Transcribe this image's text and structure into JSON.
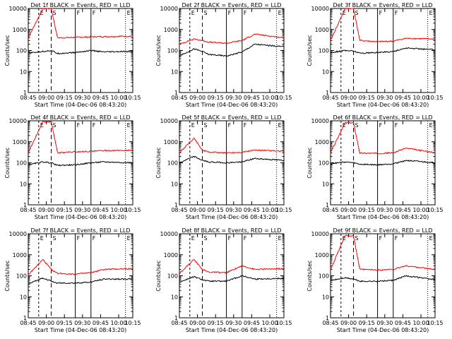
{
  "figure": {
    "axis_label_y": "Counts/sec",
    "axis_label_x": "Start Time (04-Dec-06 08:43:20)",
    "series_names": [
      "BLACK = Events",
      "RED = LLD"
    ]
  },
  "chart_data": [
    {
      "type": "line",
      "title": "Det 1f BLACK = Events, RED = LLD",
      "xlabel": "Start Time (04-Dec-06 08:43:20)",
      "ylabel": "Counts/sec",
      "ylog": true,
      "ylim": [
        1,
        10000
      ],
      "x_tick_labels": [
        "08:45",
        "09:00",
        "09:15",
        "09:30",
        "09:45",
        "10:00",
        "10:15"
      ],
      "y_tick_labels": [
        "1",
        "10",
        "100",
        "1000",
        "10000"
      ],
      "markers": [
        "E",
        "S",
        "F",
        "F",
        "E"
      ],
      "peak": 10000,
      "series": [
        {
          "name": "LLD",
          "color": "#ff0000",
          "values": [
            400,
            10000,
            10000,
            400,
            420,
            450,
            460,
            480
          ]
        },
        {
          "name": "Events",
          "color": "#000000",
          "values": [
            75,
            90,
            100,
            72,
            80,
            100,
            85,
            90
          ]
        }
      ]
    },
    {
      "type": "line",
      "title": "Det 2f BLACK = Events, RED = LLD",
      "xlabel": "Start Time (04-Dec-06 08:43:20)",
      "ylabel": "Counts/sec",
      "ylog": true,
      "ylim": [
        1,
        10000
      ],
      "x_tick_labels": [
        "08:45",
        "09:00",
        "09:15",
        "09:30",
        "09:45",
        "10:00",
        "10:15"
      ],
      "y_tick_labels": [
        "1",
        "10",
        "100",
        "1000",
        "10000"
      ],
      "markers": [
        "E",
        "S",
        "F",
        "F",
        "E"
      ],
      "peak": 600,
      "series": [
        {
          "name": "LLD",
          "color": "#ff0000",
          "values": [
            200,
            350,
            300,
            250,
            220,
            300,
            600,
            400
          ]
        },
        {
          "name": "Events",
          "color": "#000000",
          "values": [
            55,
            120,
            90,
            65,
            55,
            85,
            200,
            150
          ]
        }
      ]
    },
    {
      "type": "line",
      "title": "Det 3f BLACK = Events, RED = LLD",
      "xlabel": "Start Time (04-Dec-06 08:43:20)",
      "ylabel": "Counts/sec",
      "ylog": true,
      "ylim": [
        1,
        10000
      ],
      "x_tick_labels": [
        "08:45",
        "09:00",
        "09:15",
        "09:30",
        "09:45",
        "10:00",
        "10:15"
      ],
      "y_tick_labels": [
        "1",
        "10",
        "100",
        "1000",
        "10000"
      ],
      "markers": [
        "E",
        "S",
        "F",
        "F",
        "E"
      ],
      "peak": 10000,
      "series": [
        {
          "name": "LLD",
          "color": "#ff0000",
          "values": [
            300,
            10000,
            10000,
            300,
            260,
            280,
            380,
            350
          ]
        },
        {
          "name": "Events",
          "color": "#000000",
          "values": [
            80,
            100,
            95,
            75,
            80,
            90,
            130,
            110
          ]
        }
      ]
    },
    {
      "type": "line",
      "title": "Det 4f BLACK = Events, RED = LLD",
      "xlabel": "Start Time (04-Dec-06 08:43:20)",
      "ylabel": "Counts/sec",
      "ylog": true,
      "ylim": [
        1,
        10000
      ],
      "x_tick_labels": [
        "08:45",
        "09:00",
        "09:15",
        "09:30",
        "09:45",
        "10:00",
        "10:15"
      ],
      "y_tick_labels": [
        "1",
        "10",
        "100",
        "1000",
        "10000"
      ],
      "markers": [
        "E",
        "S",
        "F",
        "F",
        "E"
      ],
      "peak": 9000,
      "series": [
        {
          "name": "LLD",
          "color": "#ff0000",
          "values": [
            300,
            9000,
            9000,
            300,
            330,
            350,
            380,
            390
          ]
        },
        {
          "name": "Events",
          "color": "#000000",
          "values": [
            80,
            110,
            100,
            75,
            80,
            100,
            110,
            100
          ]
        }
      ]
    },
    {
      "type": "line",
      "title": "Det 5f BLACK = Events, RED = LLD",
      "xlabel": "Start Time (04-Dec-06 08:43:20)",
      "ylabel": "Counts/sec",
      "ylog": true,
      "ylim": [
        1,
        10000
      ],
      "x_tick_labels": [
        "08:45",
        "09:00",
        "09:15",
        "09:30",
        "09:45",
        "10:00",
        "10:15"
      ],
      "y_tick_labels": [
        "1",
        "10",
        "100",
        "1000",
        "10000"
      ],
      "markers": [
        "E",
        "S",
        "F",
        "F",
        "E"
      ],
      "peak": 1500,
      "series": [
        {
          "name": "LLD",
          "color": "#ff0000",
          "values": [
            300,
            1500,
            400,
            320,
            300,
            320,
            400,
            350
          ]
        },
        {
          "name": "Events",
          "color": "#000000",
          "values": [
            100,
            200,
            130,
            110,
            100,
            110,
            160,
            130
          ]
        }
      ]
    },
    {
      "type": "line",
      "title": "Det 6f BLACK = Events, RED = LLD",
      "xlabel": "Start Time (04-Dec-06 08:43:20)",
      "ylabel": "Counts/sec",
      "ylog": true,
      "ylim": [
        1,
        10000
      ],
      "x_tick_labels": [
        "08:45",
        "09:00",
        "09:15",
        "09:30",
        "09:45",
        "10:00",
        "10:15"
      ],
      "y_tick_labels": [
        "1",
        "10",
        "100",
        "1000",
        "10000"
      ],
      "markers": [
        "E",
        "S",
        "F",
        "F",
        "E"
      ],
      "peak": 8000,
      "series": [
        {
          "name": "LLD",
          "color": "#ff0000",
          "values": [
            300,
            8000,
            8000,
            290,
            280,
            300,
            500,
            300
          ]
        },
        {
          "name": "Events",
          "color": "#000000",
          "values": [
            90,
            110,
            100,
            85,
            80,
            90,
            130,
            100
          ]
        }
      ]
    },
    {
      "type": "line",
      "title": "Det 7f BLACK = Events, RED = LLD",
      "xlabel": "Start Time (04-Dec-06 08:43:20)",
      "ylabel": "Counts/sec",
      "ylog": true,
      "ylim": [
        1,
        10000
      ],
      "x_tick_labels": [
        "08:45",
        "09:00",
        "09:15",
        "09:30",
        "09:45",
        "10:00",
        "10:15"
      ],
      "y_tick_labels": [
        "1",
        "10",
        "100",
        "1000",
        "10000"
      ],
      "markers": [
        "E",
        "S",
        "F",
        "F",
        "E"
      ],
      "peak": 600,
      "series": [
        {
          "name": "LLD",
          "color": "#ff0000",
          "values": [
            110,
            600,
            200,
            130,
            120,
            140,
            200,
            220
          ]
        },
        {
          "name": "Events",
          "color": "#000000",
          "values": [
            40,
            80,
            55,
            45,
            45,
            50,
            70,
            70
          ]
        }
      ]
    },
    {
      "type": "line",
      "title": "Det 8f BLACK = Events, RED = LLD",
      "xlabel": "Start Time (04-Dec-06 08:43:20)",
      "ylabel": "Counts/sec",
      "ylog": true,
      "ylim": [
        1,
        10000
      ],
      "x_tick_labels": [
        "08:45",
        "09:00",
        "09:15",
        "09:30",
        "09:45",
        "10:00",
        "10:15"
      ],
      "y_tick_labels": [
        "1",
        "10",
        "100",
        "1000",
        "10000"
      ],
      "markers": [
        "E",
        "S",
        "F",
        "F",
        "E"
      ],
      "peak": 600,
      "series": [
        {
          "name": "LLD",
          "color": "#ff0000",
          "values": [
            130,
            600,
            200,
            150,
            140,
            300,
            200,
            220
          ]
        },
        {
          "name": "Events",
          "color": "#000000",
          "values": [
            50,
            90,
            65,
            55,
            55,
            100,
            70,
            75
          ]
        }
      ]
    },
    {
      "type": "line",
      "title": "Det 9f BLACK = Events, RED = LLD",
      "xlabel": "Start Time (04-Dec-06 08:43:20)",
      "ylabel": "Counts/sec",
      "ylog": true,
      "ylim": [
        1,
        10000
      ],
      "x_tick_labels": [
        "08:45",
        "09:00",
        "09:15",
        "09:30",
        "09:45",
        "10:00",
        "10:15"
      ],
      "y_tick_labels": [
        "1",
        "10",
        "100",
        "1000",
        "10000"
      ],
      "markers": [
        "E",
        "S",
        "F",
        "F",
        "E"
      ],
      "peak": 8000,
      "series": [
        {
          "name": "LLD",
          "color": "#ff0000",
          "values": [
            200,
            8000,
            8000,
            200,
            190,
            200,
            300,
            200
          ]
        },
        {
          "name": "Events",
          "color": "#000000",
          "values": [
            60,
            80,
            70,
            55,
            55,
            60,
            100,
            65
          ]
        }
      ]
    }
  ]
}
